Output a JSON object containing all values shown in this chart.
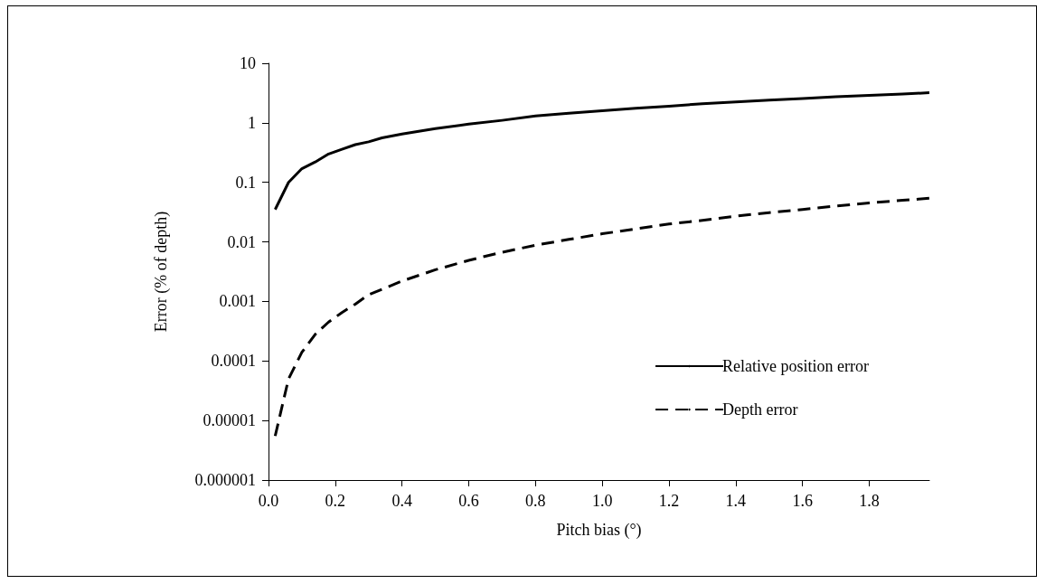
{
  "chart_data": {
    "type": "line",
    "xlabel": "Pitch bias (°)",
    "ylabel": "Error (% of depth)",
    "log": "y",
    "grid": false,
    "legend": "bottom right",
    "marker": "none",
    "xlim": [
      0,
      1.98
    ],
    "xticks": [
      {
        "value": 0,
        "label": "0.0"
      },
      0.2,
      0.4,
      0.6,
      0.8,
      {
        "value": 1,
        "label": "1.0"
      },
      1.2,
      1.4,
      1.6,
      1.8
    ],
    "ylim": [
      1e-06,
      10
    ],
    "yticks": [
      {
        "value": 1e-06,
        "label": "0.000001"
      },
      {
        "value": 1e-05,
        "label": "0.00001"
      },
      0.0001,
      0.001,
      0.01,
      0.1,
      1,
      10
    ],
    "x": [
      0.02,
      0.06,
      0.1,
      0.14,
      0.18,
      0.22,
      0.26,
      0.3,
      0.34,
      0.4,
      0.5,
      0.6,
      0.7,
      0.8,
      0.9,
      1.0,
      1.1,
      1.2,
      1.3,
      1.4,
      1.5,
      1.6,
      1.7,
      1.8,
      1.9,
      1.98
    ],
    "series": [
      {
        "name": "Relative position error",
        "color": "#000000",
        "line_style": "solid",
        "values": [
          0.035,
          0.1,
          0.17,
          0.22,
          0.3,
          0.36,
          0.43,
          0.48,
          0.56,
          0.65,
          0.8,
          0.95,
          1.1,
          1.3,
          1.45,
          1.6,
          1.75,
          1.9,
          2.1,
          2.25,
          2.4,
          2.55,
          2.75,
          2.9,
          3.05,
          3.2
        ]
      },
      {
        "name": "Depth error",
        "color": "#000000",
        "line_style": "dashed",
        "values": [
          5.5e-06,
          5e-05,
          0.00014,
          0.00028,
          0.00045,
          0.00065,
          0.0009,
          0.0013,
          0.0016,
          0.0022,
          0.0034,
          0.0049,
          0.0067,
          0.0088,
          0.011,
          0.0137,
          0.0165,
          0.02,
          0.023,
          0.027,
          0.031,
          0.035,
          0.04,
          0.045,
          0.05,
          0.054
        ]
      }
    ]
  }
}
